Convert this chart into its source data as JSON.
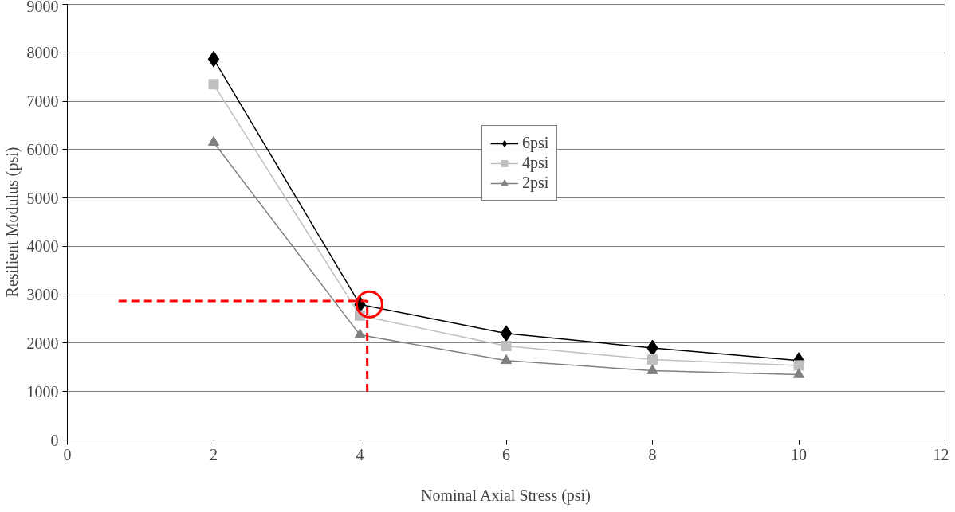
{
  "chart_data": {
    "type": "line",
    "xlabel": "Nominal Axial Stress (psi)",
    "ylabel": "Resilient Modulus (psi)",
    "x": [
      2,
      4,
      6,
      8,
      10
    ],
    "xlim": [
      0,
      12
    ],
    "xticks": [
      0,
      2,
      4,
      6,
      8,
      10,
      12
    ],
    "ylim": [
      0,
      9000
    ],
    "yticks": [
      0,
      1000,
      2000,
      3000,
      4000,
      5000,
      6000,
      7000,
      8000,
      9000
    ],
    "grid": "y",
    "legend": "right",
    "series": [
      {
        "name": "6psi",
        "color": "#000000",
        "marker": "diamond",
        "values": [
          7870,
          2800,
          2200,
          1900,
          1640
        ]
      },
      {
        "name": "4psi",
        "color": "#bfbfbf",
        "marker": "square",
        "values": [
          7350,
          2570,
          1940,
          1660,
          1540
        ]
      },
      {
        "name": "2psi",
        "color": "#808080",
        "marker": "triangle",
        "values": [
          6150,
          2170,
          1640,
          1430,
          1350
        ]
      },
      {
        "color": "#ff0000",
        "line_style": "dashed",
        "marker": "none",
        "x": [
          0.7,
          4.1,
          4.1
        ],
        "values": [
          2870,
          2870,
          1000
        ]
      },
      {
        "type": "scatter",
        "color": "#ff0000",
        "marker": "circle",
        "x": [
          4.13
        ],
        "values": [
          2800
        ]
      }
    ]
  }
}
